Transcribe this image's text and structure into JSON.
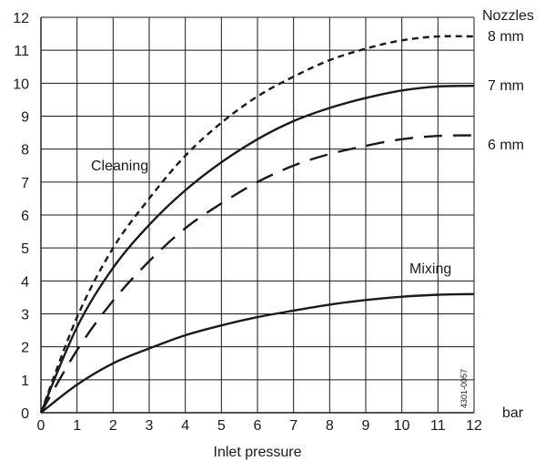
{
  "chart_data": {
    "type": "line",
    "xlabel": "Inlet pressure",
    "x_unit": "bar",
    "ylabel": "",
    "xlim": [
      0,
      12
    ],
    "ylim": [
      0,
      12
    ],
    "x_ticks": [
      "0",
      "1",
      "2",
      "3",
      "4",
      "5",
      "6",
      "7",
      "8",
      "9",
      "10",
      "11",
      "12"
    ],
    "y_ticks": [
      "0",
      "1",
      "2",
      "3",
      "4",
      "5",
      "6",
      "7",
      "8",
      "9",
      "10",
      "11",
      "12"
    ],
    "grid": true,
    "legend_title": "Nozzles",
    "series": [
      {
        "name": "8 mm",
        "style": "short-dash",
        "x": [
          0,
          1,
          2,
          3,
          4,
          5,
          6,
          7,
          8,
          9,
          10,
          11,
          12
        ],
        "y": [
          0,
          2.9,
          5.0,
          6.5,
          7.8,
          8.8,
          9.6,
          10.2,
          10.7,
          11.05,
          11.3,
          11.42,
          11.42
        ]
      },
      {
        "name": "7 mm",
        "style": "solid",
        "x": [
          0,
          1,
          2,
          3,
          4,
          5,
          6,
          7,
          8,
          9,
          10,
          11,
          12
        ],
        "y": [
          0,
          2.6,
          4.4,
          5.7,
          6.75,
          7.6,
          8.3,
          8.85,
          9.25,
          9.55,
          9.78,
          9.9,
          9.92
        ]
      },
      {
        "name": "6 mm",
        "style": "long-dash",
        "x": [
          0,
          1,
          2,
          3,
          4,
          5,
          6,
          7,
          8,
          9,
          10,
          11,
          12
        ],
        "y": [
          0,
          1.9,
          3.4,
          4.6,
          5.6,
          6.35,
          7.0,
          7.5,
          7.85,
          8.1,
          8.3,
          8.4,
          8.42
        ]
      },
      {
        "name": "",
        "style": "solid",
        "x": [
          0,
          1,
          2,
          3,
          4,
          5,
          6,
          7,
          8,
          9,
          10,
          11,
          12
        ],
        "y": [
          0,
          0.85,
          1.5,
          1.95,
          2.35,
          2.65,
          2.9,
          3.1,
          3.28,
          3.42,
          3.52,
          3.58,
          3.6
        ]
      }
    ],
    "annotations": [
      "Cleaning",
      "Mixing"
    ],
    "figure_code": "4301-0057"
  }
}
